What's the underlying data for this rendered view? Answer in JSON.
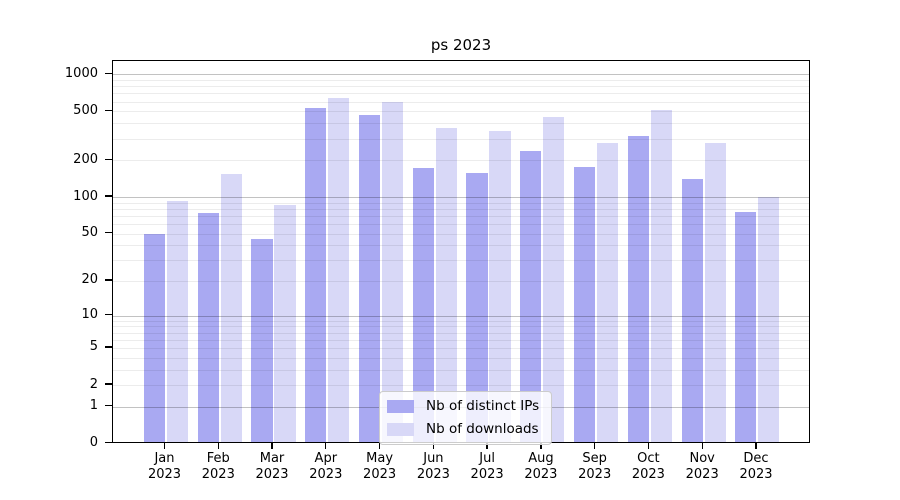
{
  "title": "ps 2023",
  "chart_data": {
    "type": "bar",
    "title": "ps 2023",
    "months": [
      "Jan",
      "Feb",
      "Mar",
      "Apr",
      "May",
      "Jun",
      "Jul",
      "Aug",
      "Sep",
      "Oct",
      "Nov",
      "Dec"
    ],
    "year": "2023",
    "series": [
      {
        "name": "Nb of distinct IPs",
        "color": "#a9a9f2",
        "values": [
          48,
          71,
          44,
          512,
          452,
          166,
          153,
          230,
          170,
          305,
          137,
          73
        ]
      },
      {
        "name": "Nb of downloads",
        "color": "#d8d8f7",
        "values": [
          90,
          149,
          84,
          628,
          580,
          357,
          335,
          436,
          266,
          493,
          266,
          96
        ]
      }
    ],
    "yscale": "log10(1+y)",
    "yticks": [
      0,
      1,
      2,
      5,
      10,
      20,
      50,
      100,
      200,
      500,
      1000
    ],
    "ytick_labels": [
      "0",
      "1",
      "2",
      "5",
      "10",
      "20",
      "50",
      "100",
      "200",
      "500",
      "1000"
    ],
    "ylim": [
      0,
      1250
    ],
    "grid": true,
    "legend_position": "lower center"
  }
}
